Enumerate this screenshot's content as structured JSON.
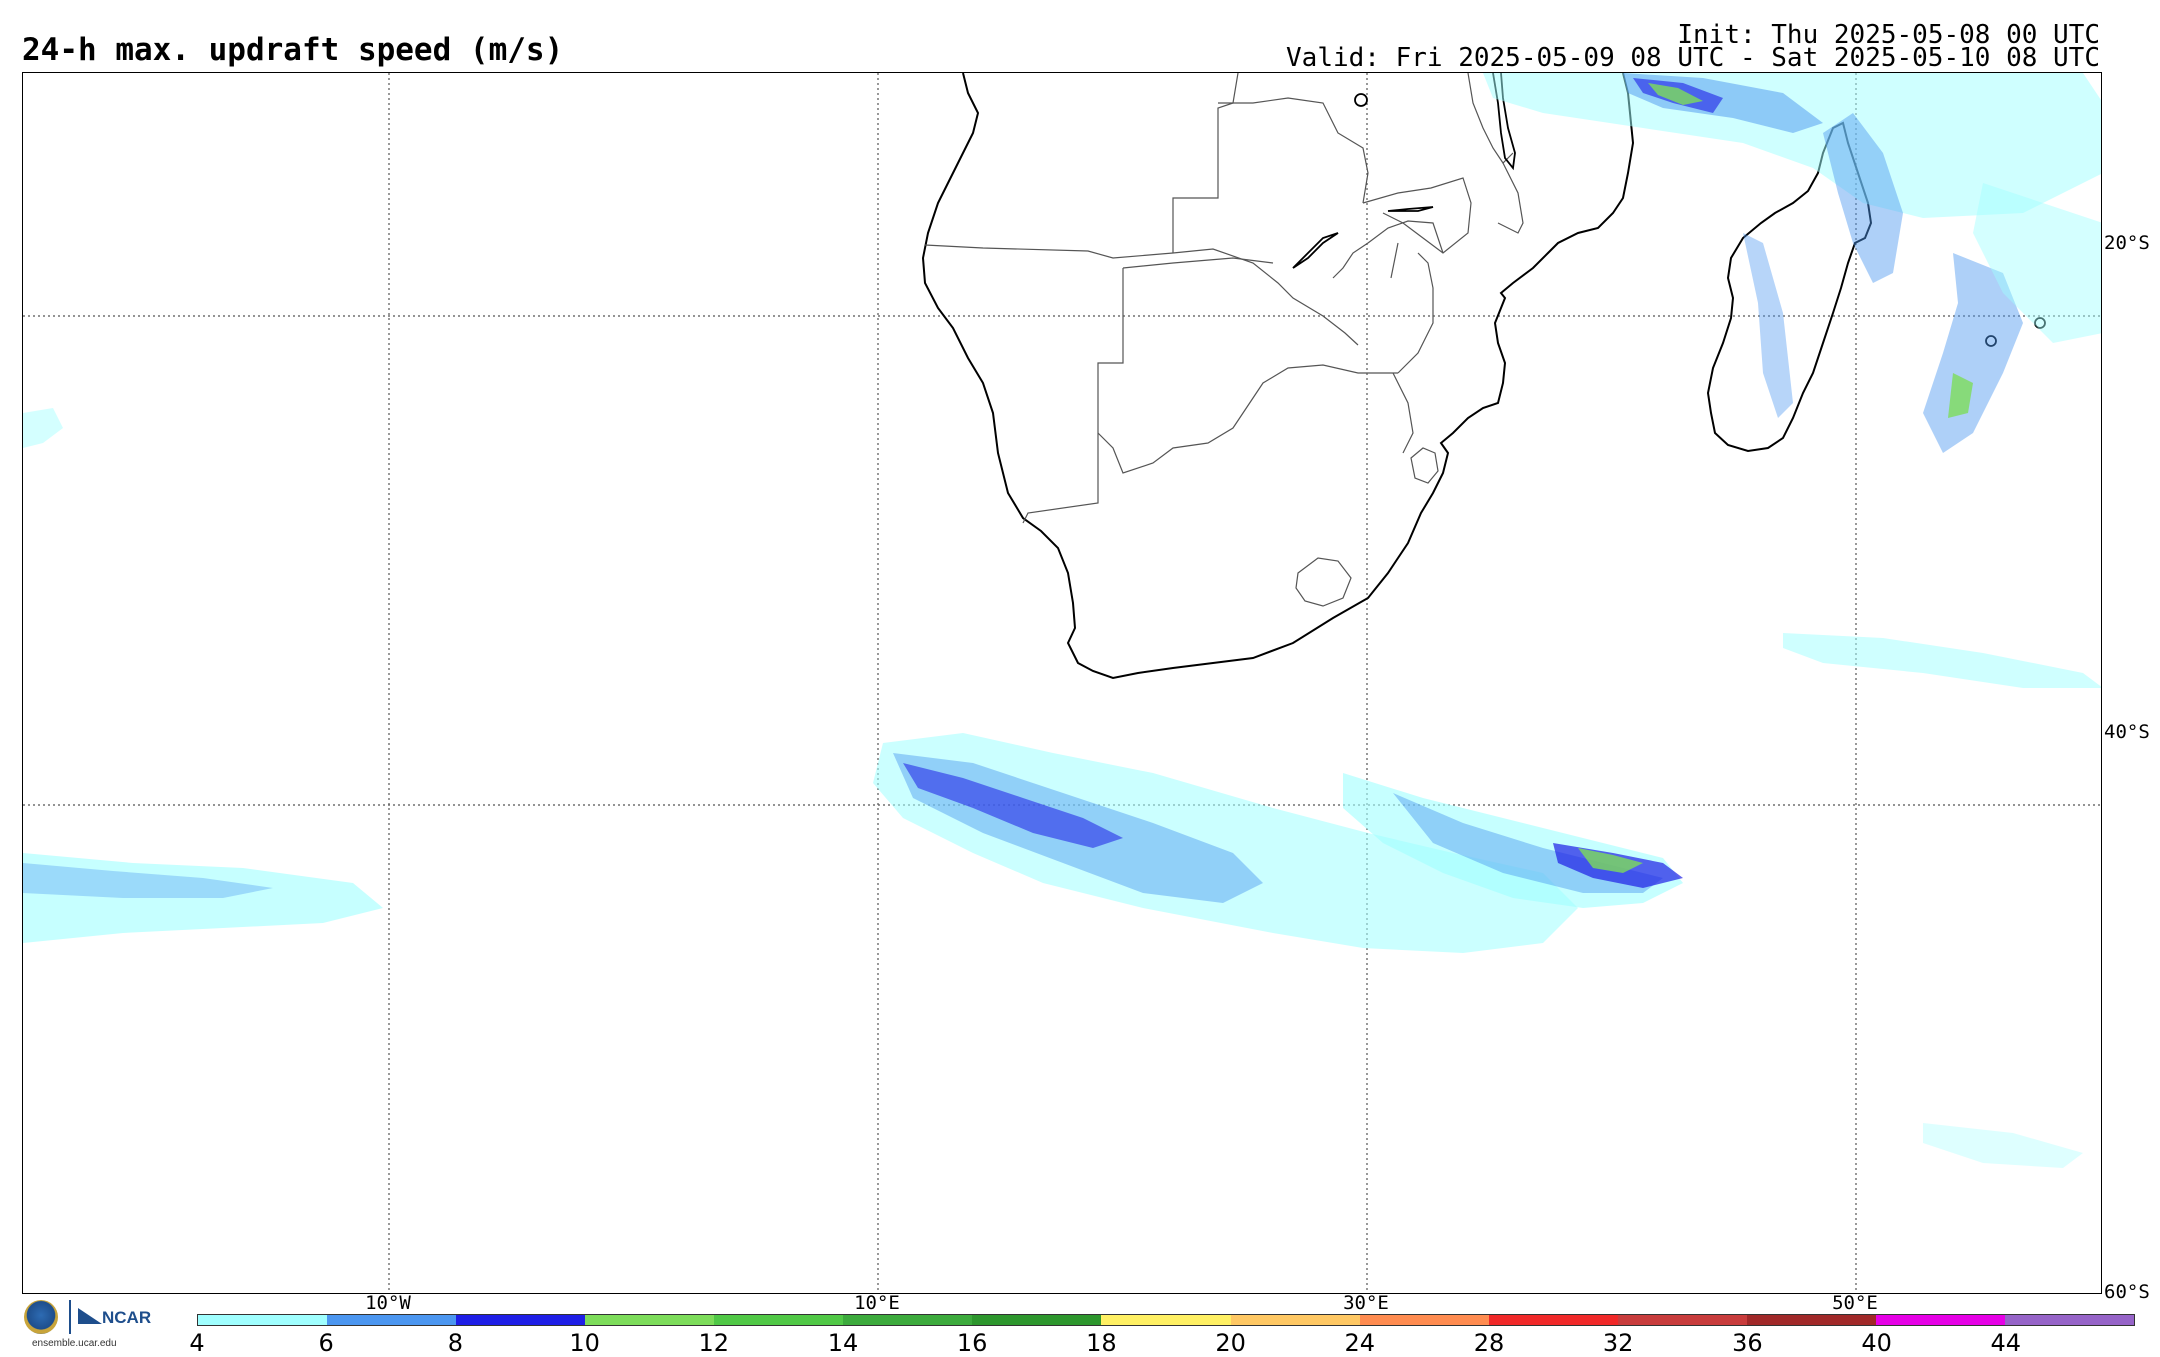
{
  "header": {
    "title": "24-h max. updraft speed (m/s)",
    "init": "Init: Thu 2025-05-08 00 UTC",
    "valid": "Valid: Fri 2025-05-09 08 UTC - Sat 2025-05-10 08 UTC"
  },
  "map": {
    "lat_labels": [
      "20°S",
      "40°S",
      "60°S"
    ],
    "lon_labels": [
      "10°W",
      "10°E",
      "30°E",
      "50°E"
    ],
    "coast_color": "#000000",
    "border_color": "#555555"
  },
  "logo": {
    "org": "NCAR",
    "url": "ensemble.ucar.edu"
  },
  "colorbar": {
    "colors": [
      "#a0ffff",
      "#4b96f0",
      "#1e1ee6",
      "#7ddc5a",
      "#50c846",
      "#3caa3c",
      "#2d962d",
      "#fff064",
      "#ffc864",
      "#ff8c50",
      "#f02828",
      "#c83c3c",
      "#a02828",
      "#e600e6",
      "#9664c8"
    ],
    "ticks": [
      "4",
      "6",
      "8",
      "10",
      "12",
      "14",
      "16",
      "18",
      "20",
      "24",
      "28",
      "32",
      "36",
      "40",
      "44"
    ]
  }
}
